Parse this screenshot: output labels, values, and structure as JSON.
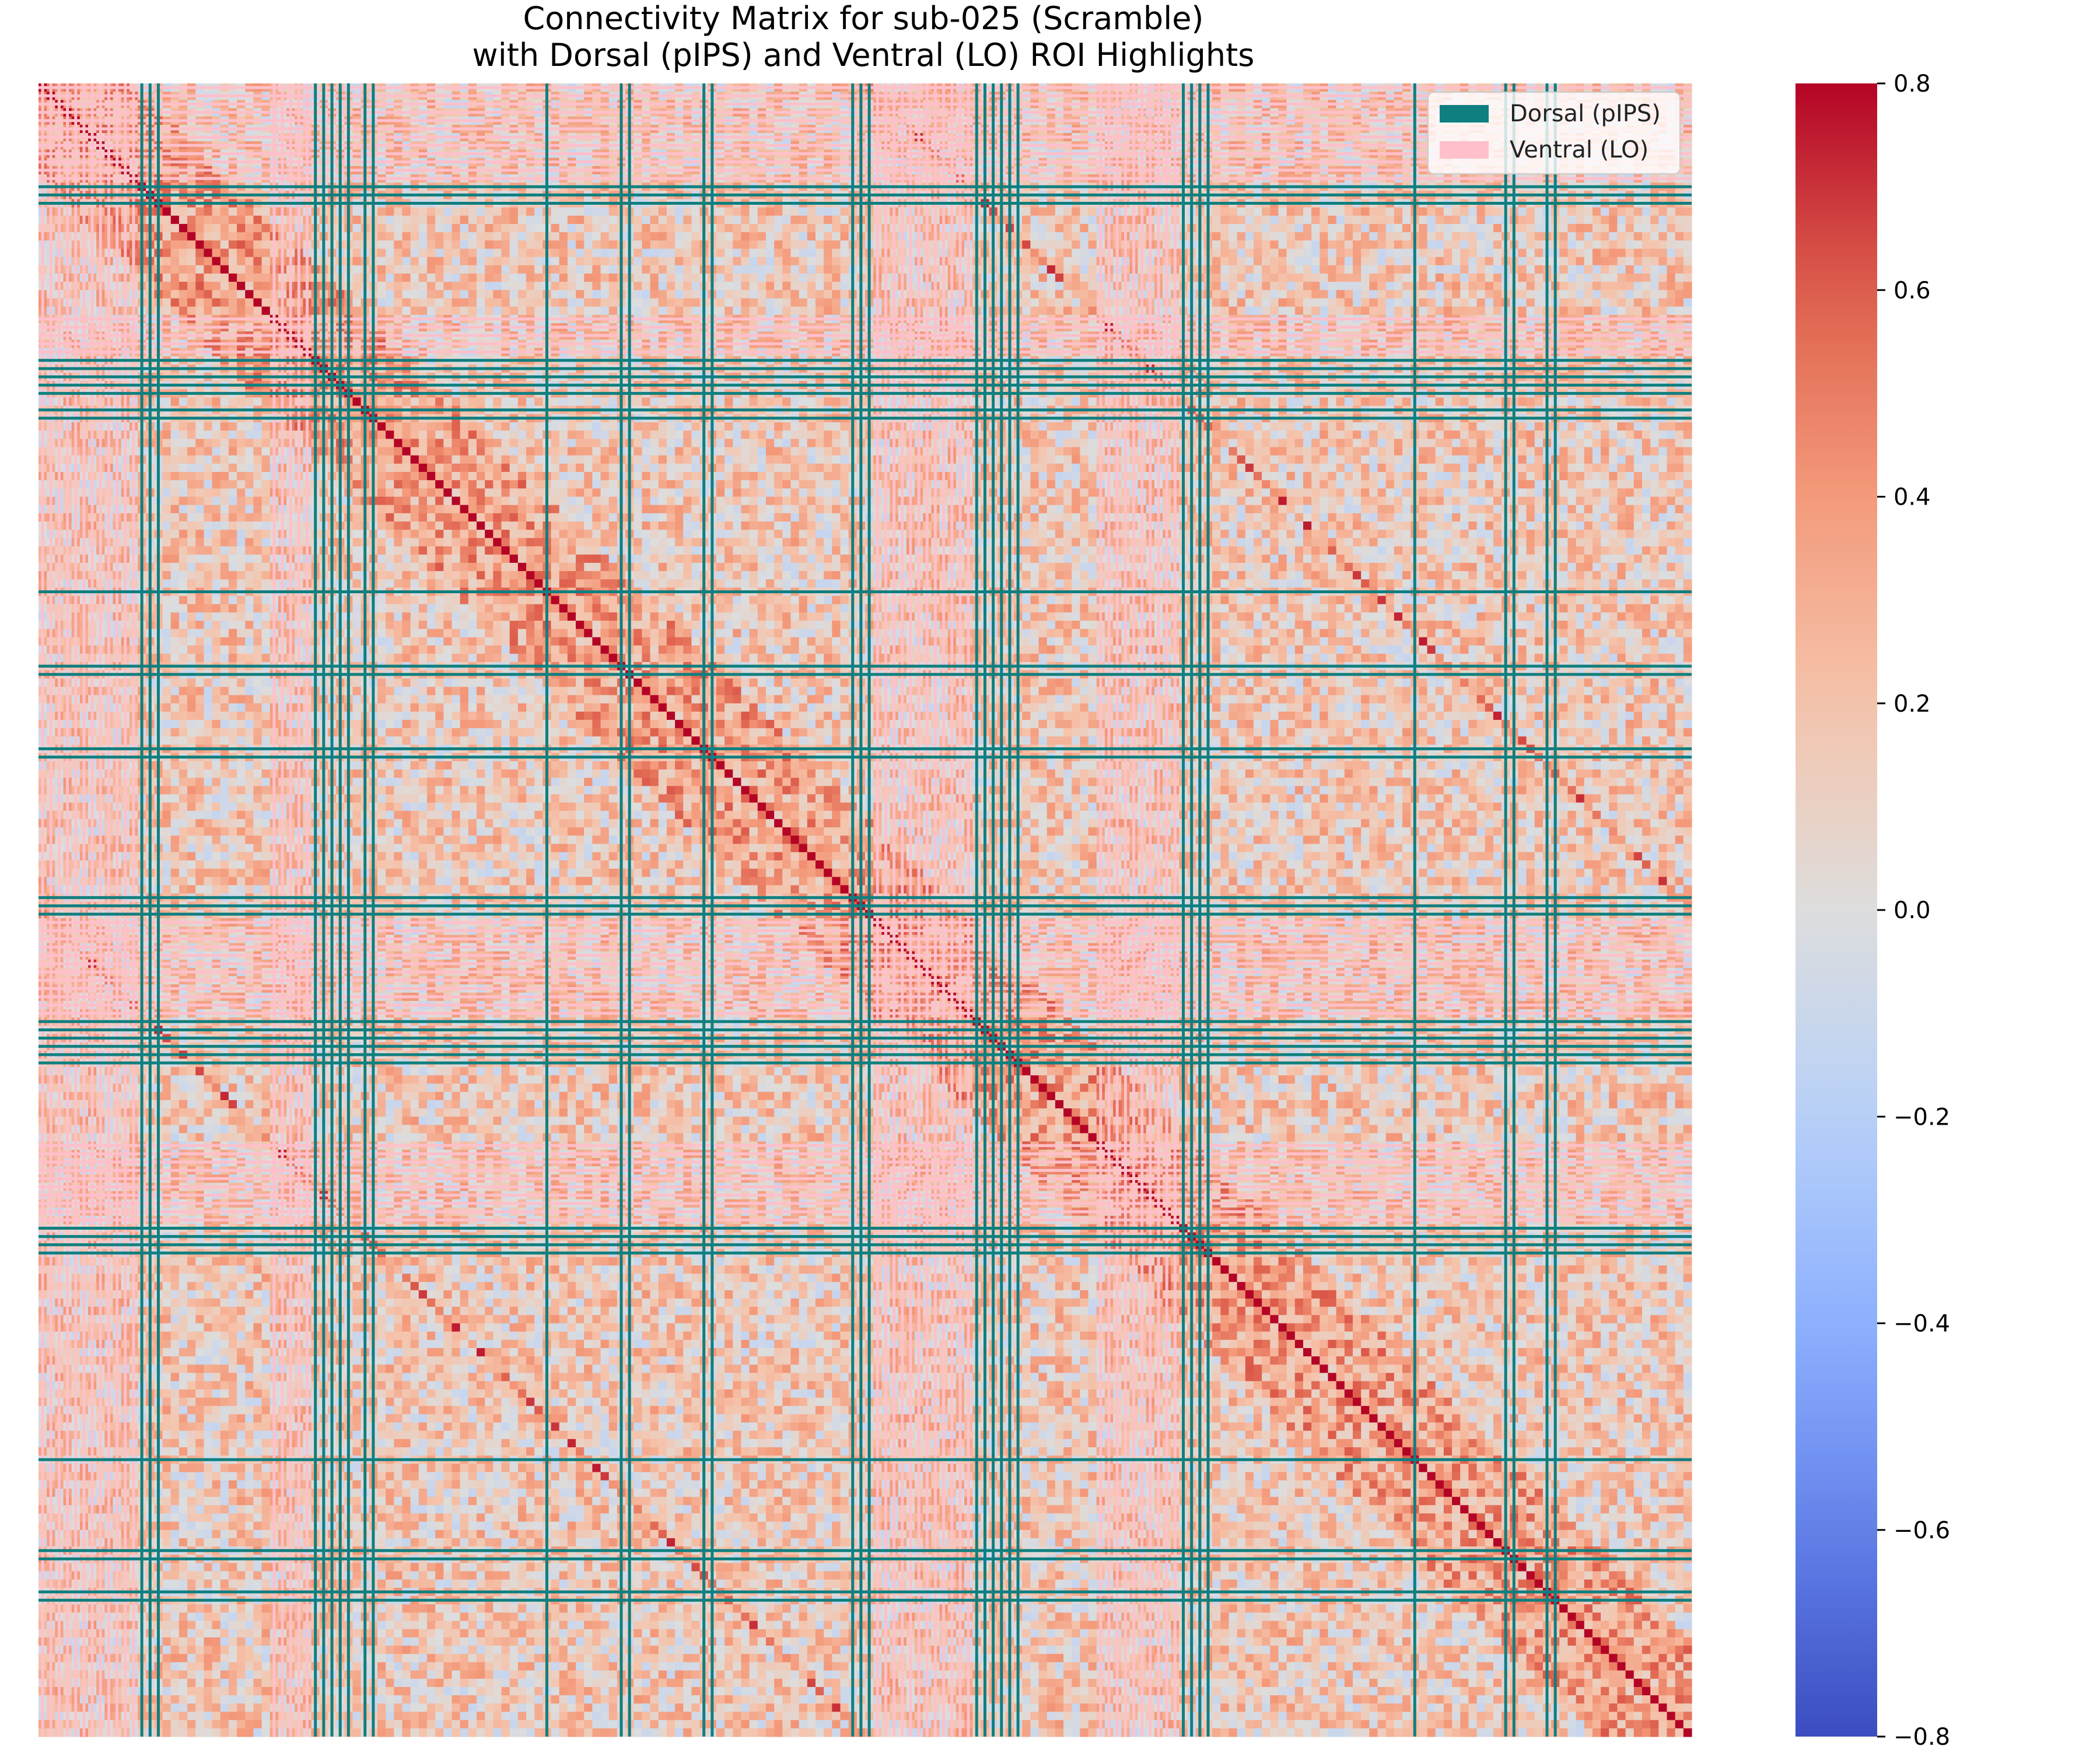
{
  "chart_data": {
    "type": "heatmap",
    "title_line1": "Connectivity Matrix for sub-025 (Scramble)",
    "title_line2": "with Dorsal (pIPS) and Ventral (LO) ROI Highlights",
    "matrix_size": 200,
    "colormap": "coolwarm",
    "colors": {
      "cmap_low": "#3b4cc0",
      "cmap_mid": "#dddddd",
      "cmap_high": "#b40426",
      "dorsal_highlight": "#0f7f7f",
      "ventral_highlight": "#ffc0cb"
    },
    "value_range": [
      -0.8,
      0.8
    ],
    "colorbar_ticks": [
      "0.8",
      "0.6",
      "0.4",
      "0.2",
      "0.0",
      "−0.2",
      "−0.4",
      "−0.6",
      "−0.8"
    ],
    "colorbar_tick_values": [
      0.8,
      0.6,
      0.4,
      0.2,
      0.0,
      -0.2,
      -0.4,
      -0.6,
      -0.8
    ],
    "diagonal_value": 0.8,
    "dorsal_indices": [
      12,
      13,
      14,
      33,
      34,
      35,
      36,
      37,
      39,
      40,
      61,
      70,
      71,
      80,
      81,
      98,
      99,
      100,
      113,
      114,
      115,
      116,
      117,
      118,
      138,
      139,
      140,
      141,
      166,
      177,
      178,
      182,
      183
    ],
    "ventral_indices": [
      0,
      1,
      2,
      3,
      4,
      5,
      6,
      7,
      8,
      9,
      10,
      11,
      28,
      29,
      30,
      31,
      32,
      100,
      101,
      102,
      103,
      104,
      105,
      106,
      107,
      108,
      109,
      110,
      111,
      112,
      128,
      129,
      130,
      131,
      132,
      133,
      134,
      135,
      136,
      137
    ],
    "legend": [
      {
        "label": "Dorsal (pIPS)",
        "color": "#0f7f7f"
      },
      {
        "label": "Ventral (LO)",
        "color": "#ffc0cb"
      }
    ],
    "legend_placement": "top-right",
    "axes_ticks": "none",
    "grid": false
  }
}
